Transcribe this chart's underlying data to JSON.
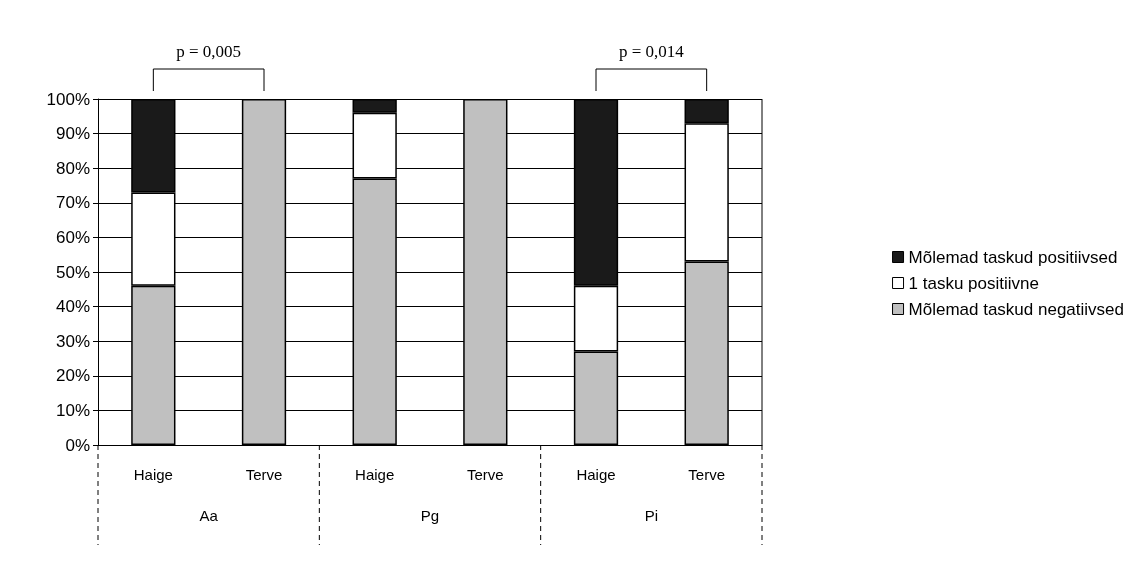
{
  "chart_data": {
    "type": "bar",
    "stacked": true,
    "categories": [
      "Haige",
      "Terve",
      "Haige",
      "Terve",
      "Haige",
      "Terve"
    ],
    "series": [
      {
        "name": "Mõlemad taskud negatiivsed",
        "color": "#c0c0c0",
        "values": [
          46,
          100,
          77,
          100,
          27,
          53
        ]
      },
      {
        "name": "1 tasku positiivne",
        "color": "#ffffff",
        "values": [
          27,
          0,
          19,
          0,
          19,
          40
        ]
      },
      {
        "name": "Mõlemad taskud positiivsed",
        "color": "#1a1a1a",
        "values": [
          27,
          0,
          4,
          0,
          54,
          7
        ]
      }
    ],
    "ylim": [
      0,
      100
    ],
    "yticks": [
      {
        "value": 0,
        "label": "0%"
      },
      {
        "value": 10,
        "label": "10%"
      },
      {
        "value": 20,
        "label": "20%"
      },
      {
        "value": 30,
        "label": "30%"
      },
      {
        "value": 40,
        "label": "40%"
      },
      {
        "value": 50,
        "label": "50%"
      },
      {
        "value": 60,
        "label": "60%"
      },
      {
        "value": 70,
        "label": "70%"
      },
      {
        "value": 80,
        "label": "80%"
      },
      {
        "value": 90,
        "label": "90%"
      },
      {
        "value": 100,
        "label": "100%"
      }
    ],
    "grid": "y",
    "legend": "right",
    "annotations": [
      "p = 0,005",
      "p = 0,014",
      "Aa",
      "Pg",
      "Pi"
    ]
  }
}
